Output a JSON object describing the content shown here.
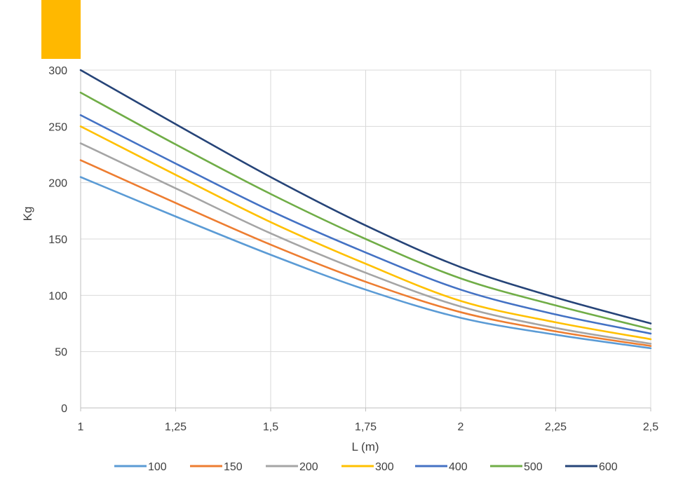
{
  "accent_color": "#FFB800",
  "chart_data": {
    "type": "line",
    "xlabel": "L (m)",
    "ylabel": "Kg",
    "xlim": [
      1,
      2.5
    ],
    "ylim": [
      0,
      300
    ],
    "x_ticks": [
      1,
      1.25,
      1.5,
      1.75,
      2,
      2.25,
      2.5
    ],
    "x_tick_labels": [
      "1",
      "1,25",
      "1,5",
      "1,75",
      "2",
      "2,25",
      "2,5"
    ],
    "y_ticks": [
      0,
      50,
      100,
      150,
      200,
      250,
      300
    ],
    "y_tick_labels": [
      "0",
      "50",
      "100",
      "150",
      "200",
      "250",
      "300"
    ],
    "grid": true,
    "legend_position": "bottom",
    "x": [
      1,
      1.25,
      1.5,
      1.75,
      2,
      2.25,
      2.5
    ],
    "series": [
      {
        "name": "100",
        "color": "#5B9BD5",
        "values": [
          205,
          170,
          136,
          105,
          80,
          65,
          53
        ]
      },
      {
        "name": "150",
        "color": "#ED7D31",
        "values": [
          220,
          182,
          145,
          112,
          85,
          68,
          55
        ]
      },
      {
        "name": "200",
        "color": "#A5A5A5",
        "values": [
          235,
          195,
          155,
          120,
          90,
          71,
          57
        ]
      },
      {
        "name": "300",
        "color": "#FFC000",
        "values": [
          250,
          207,
          165,
          128,
          95,
          76,
          61
        ]
      },
      {
        "name": "400",
        "color": "#4472C4",
        "values": [
          260,
          217,
          175,
          138,
          105,
          83,
          66
        ]
      },
      {
        "name": "500",
        "color": "#70AD47",
        "values": [
          280,
          234,
          190,
          150,
          115,
          91,
          70
        ]
      },
      {
        "name": "600",
        "color": "#264478",
        "values": [
          300,
          252,
          205,
          162,
          125,
          98,
          75
        ]
      }
    ]
  }
}
